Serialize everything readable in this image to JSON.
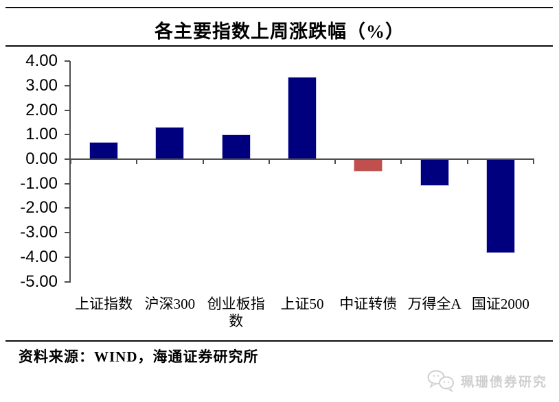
{
  "title": "各主要指数上周涨跌幅（%）",
  "footer": {
    "source": "资料来源：WIND，海通证券研究所"
  },
  "watermark": {
    "icon": "wechat-icon",
    "label": "珮珊债券研究"
  },
  "colors": {
    "bar_positive_blue": "#00007F",
    "bar_convertible_red": "#C0504D",
    "axis": "#4d4d4d",
    "rule": "#0c0c0c",
    "watermark_gray": "#cfcfcf"
  },
  "chart_data": {
    "type": "bar",
    "title": "各主要指数上周涨跌幅（%）",
    "xlabel": "",
    "ylabel": "",
    "categories": [
      "上证指数",
      "沪深300",
      "创业板指数",
      "上证50",
      "中证转债",
      "万得全A",
      "国证2000"
    ],
    "values": [
      0.71,
      1.32,
      1.0,
      3.35,
      -0.5,
      -1.09,
      -3.85
    ],
    "bar_colors": [
      "#00007F",
      "#00007F",
      "#00007F",
      "#00007F",
      "#C0504D",
      "#00007F",
      "#00007F"
    ],
    "bar_edge_colors": [
      "#c9c9ea",
      "#c9c9ea",
      "#c9c9ea",
      "#c9c9ea",
      "#e3b6b4",
      "#c9c9ea",
      "#c9c9ea"
    ],
    "ylim": [
      -5,
      4
    ],
    "ytick_step": 1,
    "ytick_labels": [
      "4.00",
      "3.00",
      "2.00",
      "1.00",
      "0.00",
      "-1.00",
      "-2.00",
      "-3.00",
      "-4.00",
      "-5.00"
    ],
    "grid": false,
    "legend": null
  }
}
